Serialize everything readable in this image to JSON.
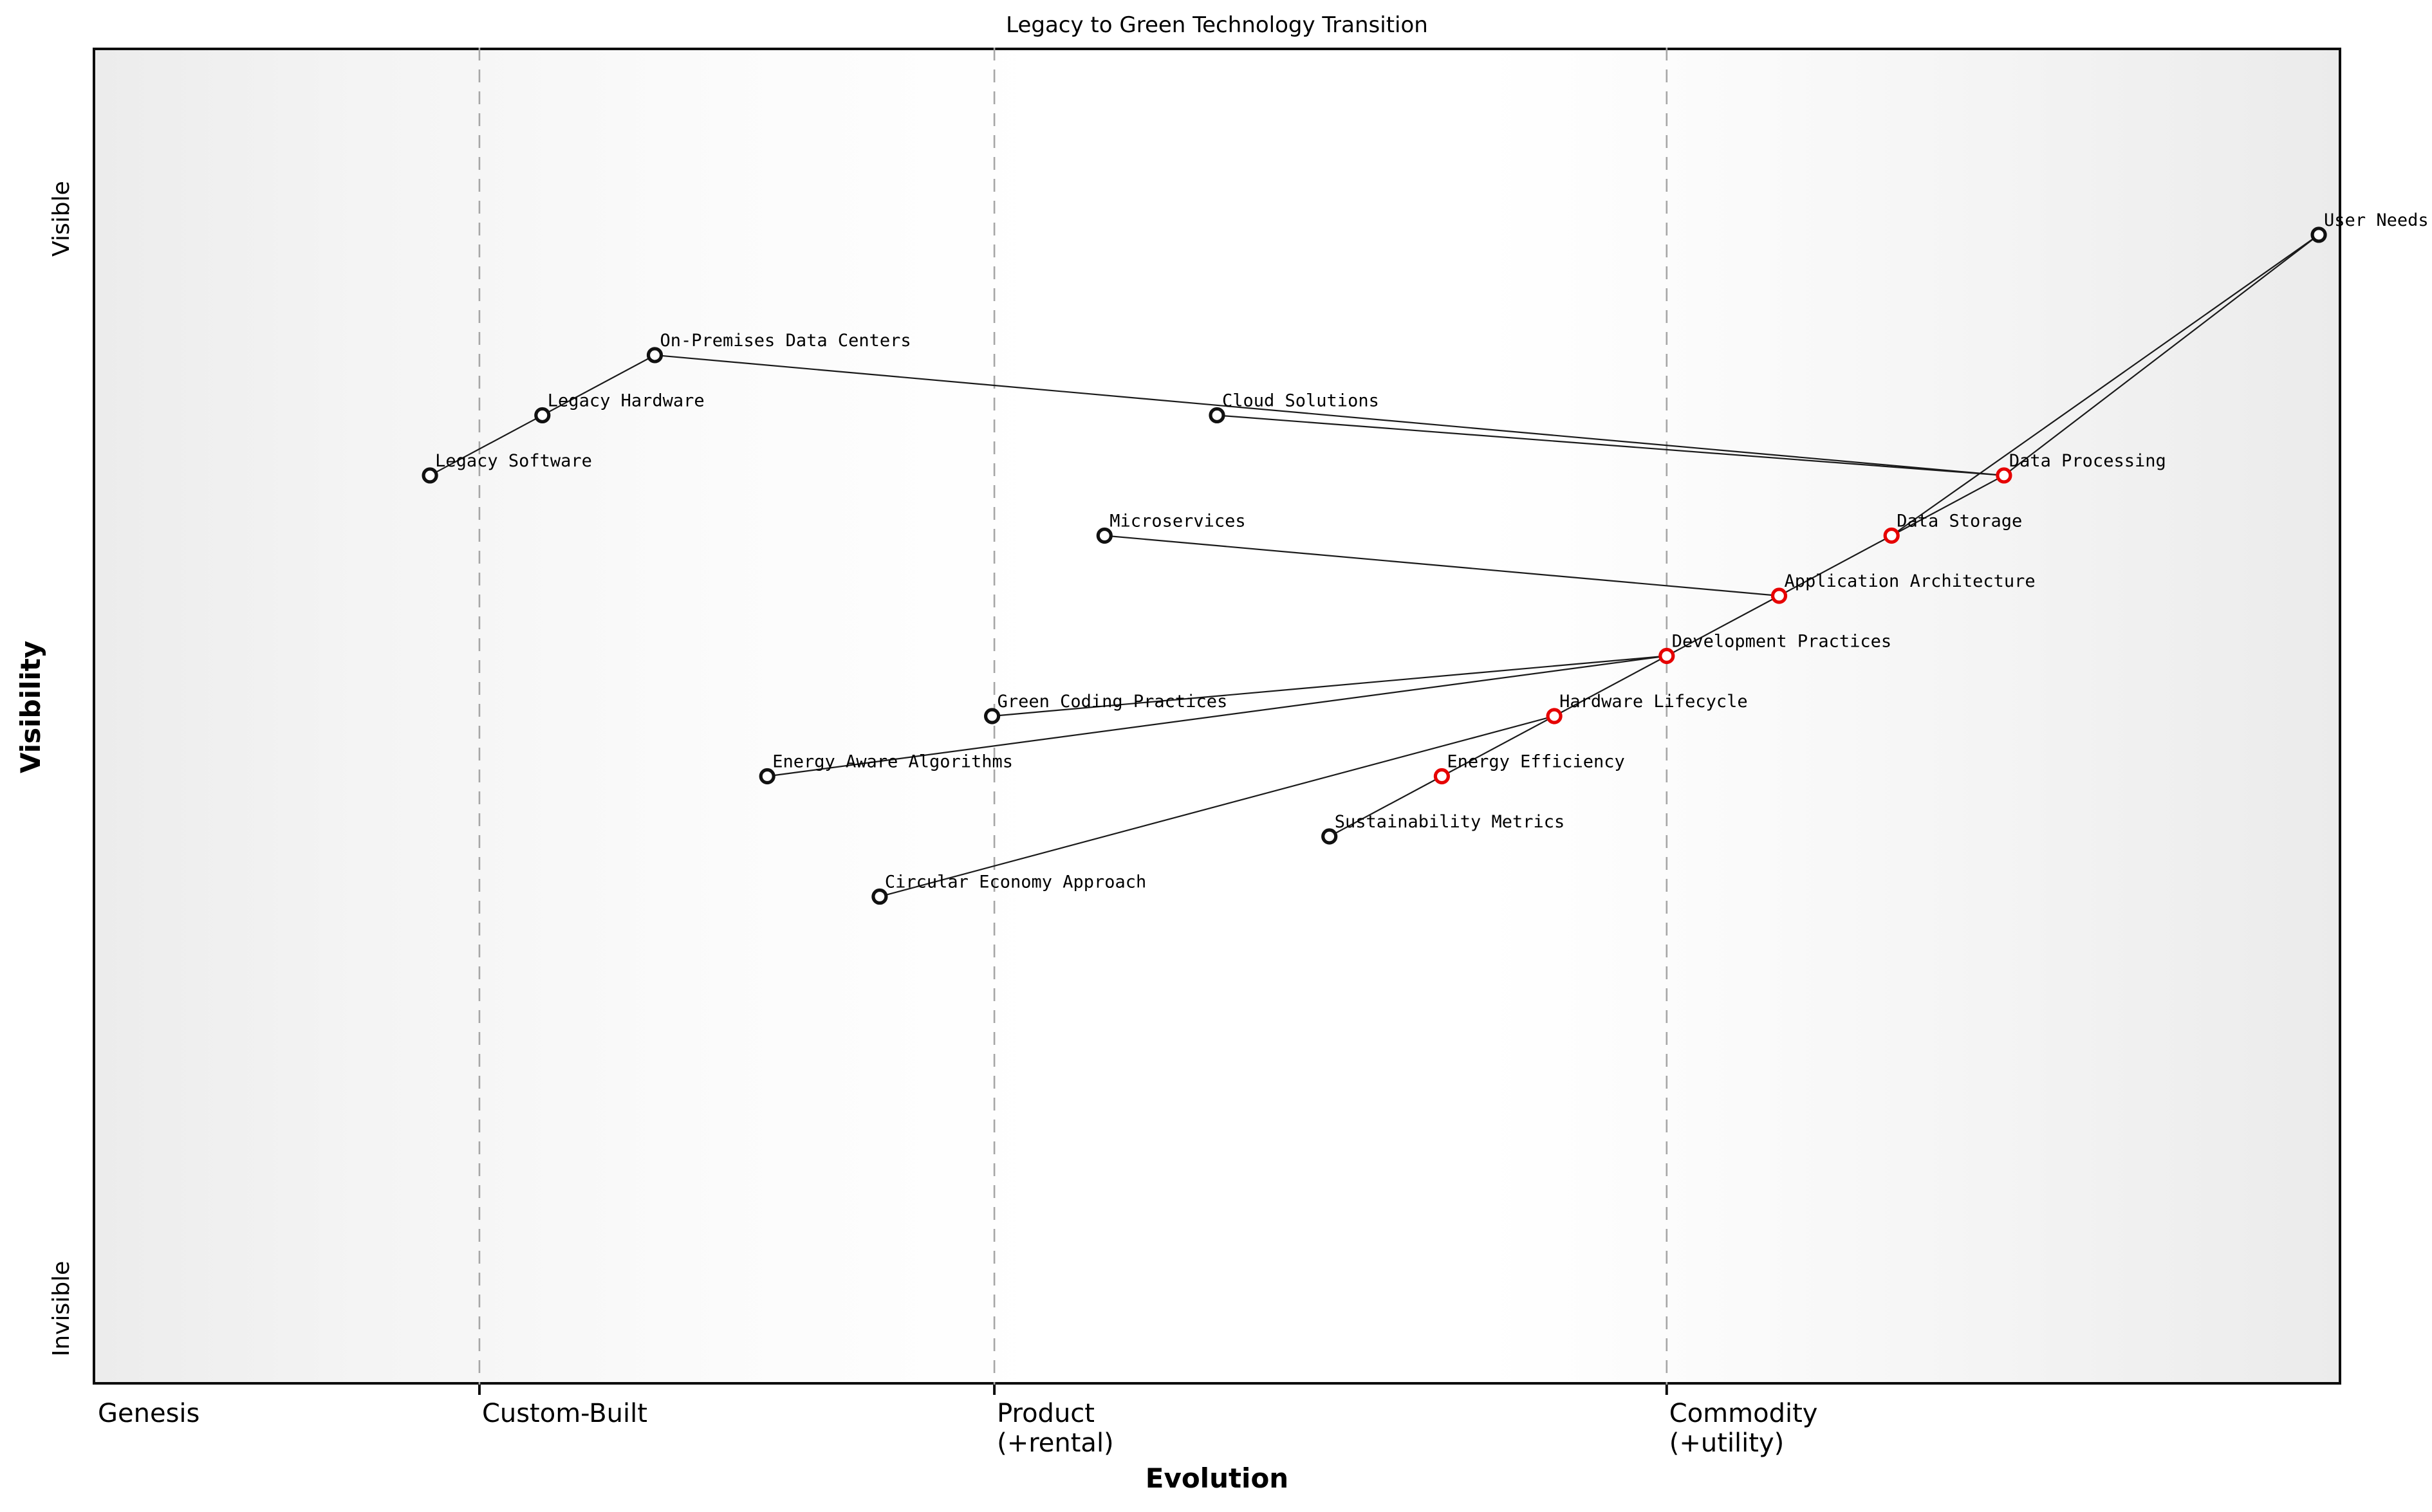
{
  "title": "Legacy to Green Technology Transition",
  "axes": {
    "x_title": "Evolution",
    "y_title": "Visibility",
    "y_top_label": "Visible",
    "y_bottom_label": "Invisible"
  },
  "chart_data": {
    "type": "scatter",
    "subtype": "wardley-map",
    "title": "Legacy to Green Technology Transition",
    "xlabel": "Evolution",
    "ylabel": "Visibility",
    "x_range": [
      0,
      1
    ],
    "y_range": [
      0,
      1
    ],
    "y_tick_labels": [
      "Invisible",
      "Visible"
    ],
    "grid": "dashed vertical stage boundaries",
    "stages": [
      {
        "label": "Genesis",
        "sublabel": "",
        "x": 0.0
      },
      {
        "label": "Custom-Built",
        "sublabel": "",
        "x": 0.172
      },
      {
        "label": "Product",
        "sublabel": "(+rental)",
        "x": 0.401
      },
      {
        "label": "Commodity",
        "sublabel": "(+utility)",
        "x": 0.7
      }
    ],
    "nodes": [
      {
        "id": "user_needs",
        "label": "User Needs",
        "evolution": 0.99,
        "visibility": 0.86,
        "color": "default"
      },
      {
        "id": "on_premises_data_centers",
        "label": "On-Premises Data Centers",
        "evolution": 0.25,
        "visibility": 0.77,
        "color": "default"
      },
      {
        "id": "legacy_hardware",
        "label": "Legacy Hardware",
        "evolution": 0.2,
        "visibility": 0.725,
        "color": "default"
      },
      {
        "id": "legacy_software",
        "label": "Legacy Software",
        "evolution": 0.15,
        "visibility": 0.68,
        "color": "default"
      },
      {
        "id": "cloud_solutions",
        "label": "Cloud Solutions",
        "evolution": 0.5,
        "visibility": 0.725,
        "color": "default"
      },
      {
        "id": "data_processing",
        "label": "Data Processing",
        "evolution": 0.85,
        "visibility": 0.68,
        "color": "evolved"
      },
      {
        "id": "microservices",
        "label": "Microservices",
        "evolution": 0.45,
        "visibility": 0.635,
        "color": "default"
      },
      {
        "id": "data_storage",
        "label": "Data Storage",
        "evolution": 0.8,
        "visibility": 0.635,
        "color": "evolved"
      },
      {
        "id": "application_architecture",
        "label": "Application Architecture",
        "evolution": 0.75,
        "visibility": 0.59,
        "color": "evolved"
      },
      {
        "id": "development_practices",
        "label": "Development Practices",
        "evolution": 0.7,
        "visibility": 0.545,
        "color": "evolved"
      },
      {
        "id": "green_coding_practices",
        "label": "Green Coding Practices",
        "evolution": 0.4,
        "visibility": 0.5,
        "color": "default"
      },
      {
        "id": "hardware_lifecycle",
        "label": "Hardware Lifecycle",
        "evolution": 0.65,
        "visibility": 0.5,
        "color": "evolved"
      },
      {
        "id": "energy_aware_algorithms",
        "label": "Energy Aware Algorithms",
        "evolution": 0.3,
        "visibility": 0.455,
        "color": "default"
      },
      {
        "id": "energy_efficiency",
        "label": "Energy Efficiency",
        "evolution": 0.6,
        "visibility": 0.455,
        "color": "evolved"
      },
      {
        "id": "sustainability_metrics",
        "label": "Sustainability Metrics",
        "evolution": 0.55,
        "visibility": 0.41,
        "color": "default"
      },
      {
        "id": "circular_economy_approach",
        "label": "Circular Economy Approach",
        "evolution": 0.35,
        "visibility": 0.365,
        "color": "default"
      }
    ],
    "edges": [
      [
        "legacy_software",
        "legacy_hardware"
      ],
      [
        "legacy_hardware",
        "on_premises_data_centers"
      ],
      [
        "on_premises_data_centers",
        "data_processing"
      ],
      [
        "cloud_solutions",
        "data_processing"
      ],
      [
        "user_needs",
        "data_processing"
      ],
      [
        "user_needs",
        "data_storage"
      ],
      [
        "data_processing",
        "data_storage"
      ],
      [
        "data_storage",
        "application_architecture"
      ],
      [
        "microservices",
        "application_architecture"
      ],
      [
        "application_architecture",
        "development_practices"
      ],
      [
        "development_practices",
        "green_coding_practices"
      ],
      [
        "development_practices",
        "energy_aware_algorithms"
      ],
      [
        "development_practices",
        "hardware_lifecycle"
      ],
      [
        "hardware_lifecycle",
        "energy_efficiency"
      ],
      [
        "energy_efficiency",
        "sustainability_metrics"
      ],
      [
        "hardware_lifecycle",
        "circular_economy_approach"
      ]
    ],
    "colors": {
      "default_node": "#111111",
      "evolved_node": "#e60000",
      "node_fill": "#ffffff",
      "edge": "#1a1a1a",
      "stage_boundary": "#a6a6a6"
    }
  }
}
